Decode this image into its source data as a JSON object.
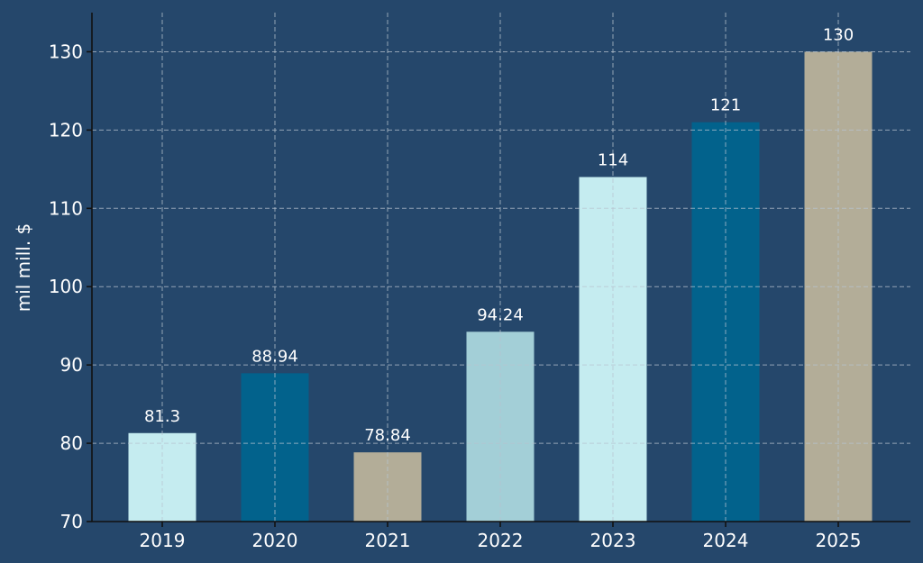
{
  "chart_data": {
    "type": "bar",
    "categories": [
      "2019",
      "2020",
      "2021",
      "2022",
      "2023",
      "2024",
      "2025"
    ],
    "values": [
      81.3,
      88.94,
      78.84,
      94.24,
      114,
      121,
      130
    ],
    "data_labels": [
      "81.3",
      "88.94",
      "78.84",
      "94.24",
      "114",
      "121",
      "130"
    ],
    "bar_colors": [
      "#c5ecf0",
      "#02628c",
      "#b3ad98",
      "#a3cfd7",
      "#c5ecf0",
      "#02628c",
      "#b3ad98"
    ],
    "title": "",
    "xlabel": "",
    "ylabel": "mil mill. $",
    "ylim": [
      70,
      135
    ],
    "yticks": [
      70,
      80,
      90,
      100,
      110,
      120,
      130
    ],
    "grid": true,
    "background_color": "#25476b"
  }
}
